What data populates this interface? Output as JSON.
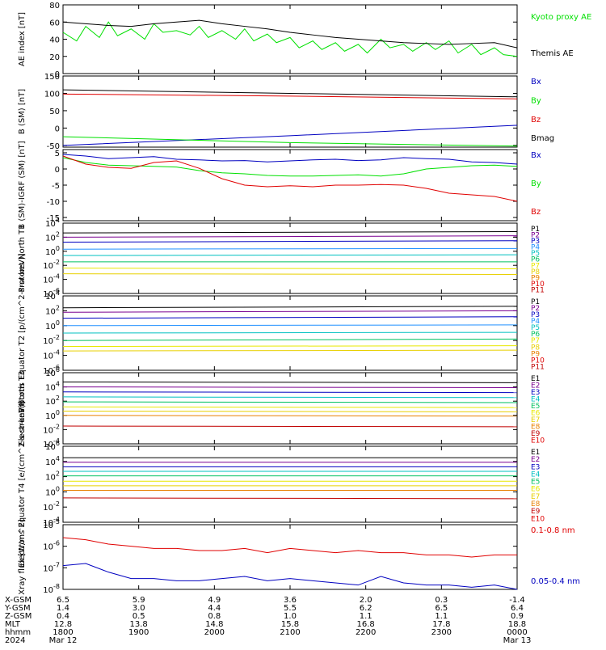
{
  "chart_data": [
    {
      "type": "line",
      "ylabel": "AE index [nT]",
      "ylim": [
        0,
        80
      ],
      "yticks": [
        "0",
        "20",
        "40",
        "60",
        "80"
      ],
      "series": [
        {
          "name": "Kyoto proxy AE",
          "color": "#00e000",
          "x": [
            0,
            0.03,
            0.05,
            0.08,
            0.1,
            0.12,
            0.15,
            0.18,
            0.2,
            0.22,
            0.25,
            0.28,
            0.3,
            0.32,
            0.35,
            0.38,
            0.4,
            0.42,
            0.45,
            0.47,
            0.5,
            0.52,
            0.55,
            0.57,
            0.6,
            0.62,
            0.65,
            0.67,
            0.7,
            0.72,
            0.75,
            0.77,
            0.8,
            0.82,
            0.85,
            0.87,
            0.9,
            0.92,
            0.95,
            0.97,
            1.0
          ],
          "y": [
            48,
            38,
            55,
            42,
            60,
            44,
            52,
            40,
            58,
            48,
            50,
            45,
            55,
            42,
            50,
            40,
            52,
            38,
            46,
            36,
            42,
            30,
            38,
            28,
            36,
            26,
            34,
            24,
            40,
            30,
            34,
            26,
            36,
            28,
            38,
            24,
            34,
            22,
            30,
            22,
            20
          ]
        },
        {
          "name": "Themis AE",
          "color": "#000000",
          "x": [
            0,
            0.05,
            0.1,
            0.15,
            0.2,
            0.25,
            0.3,
            0.35,
            0.4,
            0.45,
            0.5,
            0.55,
            0.6,
            0.65,
            0.7,
            0.75,
            0.8,
            0.85,
            0.9,
            0.95,
            1.0
          ],
          "y": [
            60,
            58,
            56,
            55,
            58,
            60,
            62,
            58,
            55,
            52,
            48,
            45,
            42,
            40,
            38,
            36,
            35,
            34,
            35,
            36,
            30
          ]
        }
      ],
      "legend": [
        "Kyoto proxy AE",
        "Themis AE"
      ]
    },
    {
      "type": "line",
      "ylabel": "B (SM) [nT]",
      "ylim": [
        -55,
        150
      ],
      "yticks": [
        "-50",
        "0",
        "50",
        "100",
        "150"
      ],
      "series": [
        {
          "name": "Bx",
          "color": "#0000c0",
          "x": [
            0,
            0.5,
            1.0
          ],
          "y": [
            -50,
            -22,
            8
          ]
        },
        {
          "name": "By",
          "color": "#00e000",
          "x": [
            0,
            0.5,
            1.0
          ],
          "y": [
            -25,
            -42,
            -52
          ]
        },
        {
          "name": "Bz",
          "color": "#e00000",
          "x": [
            0,
            0.5,
            1.0
          ],
          "y": [
            98,
            92,
            84
          ]
        },
        {
          "name": "Bmag",
          "color": "#000000",
          "x": [
            0,
            0.5,
            1.0
          ],
          "y": [
            110,
            100,
            90
          ]
        }
      ]
    },
    {
      "type": "line",
      "ylabel": "B (SM)-IGRF (SM) [nT]",
      "ylim": [
        -16,
        6
      ],
      "yticks": [
        "5",
        "0",
        "-5",
        "-10",
        "-15"
      ],
      "series": [
        {
          "name": "Bx",
          "color": "#0000c0",
          "x": [
            0,
            0.05,
            0.1,
            0.15,
            0.2,
            0.25,
            0.3,
            0.35,
            0.4,
            0.45,
            0.5,
            0.55,
            0.6,
            0.65,
            0.7,
            0.75,
            0.8,
            0.85,
            0.9,
            0.95,
            1.0
          ],
          "y": [
            4.5,
            4,
            3.2,
            3.5,
            3.8,
            3,
            2.8,
            2.5,
            2.6,
            2.2,
            2.5,
            2.8,
            3,
            2.6,
            2.8,
            3.5,
            3.2,
            3,
            2.2,
            2,
            1.5
          ]
        },
        {
          "name": "By",
          "color": "#00e000",
          "x": [
            0,
            0.05,
            0.1,
            0.15,
            0.2,
            0.25,
            0.3,
            0.35,
            0.4,
            0.45,
            0.5,
            0.55,
            0.6,
            0.65,
            0.7,
            0.75,
            0.8,
            0.85,
            0.9,
            0.95,
            1.0
          ],
          "y": [
            3.5,
            2,
            1.2,
            1,
            0.8,
            0.6,
            -0.5,
            -1.2,
            -1.5,
            -2,
            -2.2,
            -2.2,
            -2,
            -1.8,
            -2.2,
            -1.5,
            0,
            0.5,
            1,
            1.2,
            0.8
          ]
        },
        {
          "name": "Bz",
          "color": "#e00000",
          "x": [
            0,
            0.05,
            0.1,
            0.15,
            0.2,
            0.25,
            0.3,
            0.35,
            0.4,
            0.45,
            0.5,
            0.55,
            0.6,
            0.65,
            0.7,
            0.75,
            0.8,
            0.85,
            0.9,
            0.95,
            1.0
          ],
          "y": [
            4,
            1.5,
            0.5,
            0.2,
            2,
            2.5,
            0.2,
            -3,
            -5,
            -5.5,
            -5.2,
            -5.5,
            -5,
            -5,
            -4.8,
            -5,
            -6,
            -7.5,
            -8,
            -8.5,
            -10
          ]
        }
      ]
    },
    {
      "type": "line",
      "ylabel": "Protons North T1",
      "log": true,
      "ylim": [
        -6,
        4
      ],
      "yticks": [
        "10^4",
        "10^2",
        "10^0",
        "10^-2",
        "10^-4",
        "10^-6"
      ],
      "series": [
        {
          "name": "P1",
          "color": "#000000",
          "y": [
            2.6,
            2.8
          ]
        },
        {
          "name": "P2",
          "color": "#7a0090",
          "y": [
            2.0,
            2.2
          ]
        },
        {
          "name": "P3",
          "color": "#0000c0",
          "y": [
            1.3,
            1.5
          ]
        },
        {
          "name": "P4",
          "color": "#2090ff",
          "y": [
            0.3,
            0.4
          ]
        },
        {
          "name": "P5",
          "color": "#00c0c0",
          "y": [
            -0.6,
            -0.5
          ]
        },
        {
          "name": "P6",
          "color": "#00c060",
          "y": [
            -1.5,
            -1.5
          ]
        },
        {
          "name": "P7",
          "color": "#e8e800",
          "y": [
            -2.4,
            -2.5
          ]
        },
        {
          "name": "P8",
          "color": "#e8d000",
          "y": [
            -3.2,
            -3.3
          ]
        },
        {
          "name": "P9",
          "color": "#e88000",
          "y": []
        },
        {
          "name": "P10",
          "color": "#e00000",
          "y": []
        },
        {
          "name": "P11",
          "color": "#c00000",
          "y": []
        }
      ]
    },
    {
      "type": "line",
      "ylabel": "Protons Equator T2 [p/(cm^2-s-sr-keV)]",
      "log": true,
      "ylim": [
        -6,
        4
      ],
      "yticks": [
        "10^4",
        "10^2",
        "10^0",
        "10^-2",
        "10^-4",
        "10^-6"
      ],
      "series": [
        {
          "name": "P1",
          "color": "#000000",
          "y": [
            2.4,
            2.6
          ]
        },
        {
          "name": "P2",
          "color": "#7a0090",
          "y": [
            1.8,
            2.0
          ]
        },
        {
          "name": "P3",
          "color": "#0000c0",
          "y": [
            1.0,
            1.2
          ]
        },
        {
          "name": "P4",
          "color": "#2090ff",
          "y": [
            0.0,
            0.1
          ]
        },
        {
          "name": "P5",
          "color": "#00c0c0",
          "y": [
            -1.0,
            -0.9
          ]
        },
        {
          "name": "P6",
          "color": "#00c060",
          "y": [
            -2.0,
            -1.8
          ]
        },
        {
          "name": "P7",
          "color": "#e8e800",
          "y": [
            -2.8,
            -2.7
          ]
        },
        {
          "name": "P8",
          "color": "#e8d000",
          "y": [
            -3.4,
            -3.3
          ]
        },
        {
          "name": "P9",
          "color": "#e88000",
          "y": []
        },
        {
          "name": "P10",
          "color": "#e00000",
          "y": []
        },
        {
          "name": "P11",
          "color": "#c00000",
          "y": []
        }
      ]
    },
    {
      "type": "line",
      "ylabel": "Electrons North T3",
      "log": true,
      "ylim": [
        -4,
        6
      ],
      "yticks": [
        "10^6",
        "10^4",
        "10^2",
        "10^0",
        "10^-2",
        "10^-4"
      ],
      "series": [
        {
          "name": "E1",
          "color": "#000000",
          "y": [
            4.7,
            4.6
          ]
        },
        {
          "name": "E2",
          "color": "#7a0090",
          "y": [
            4.0,
            3.9
          ]
        },
        {
          "name": "E3",
          "color": "#0000c0",
          "y": [
            3.3,
            3.2
          ]
        },
        {
          "name": "E4",
          "color": "#00c0c0",
          "y": [
            2.6,
            2.5
          ]
        },
        {
          "name": "E5",
          "color": "#00c060",
          "y": [
            1.9,
            1.8
          ]
        },
        {
          "name": "E6",
          "color": "#e8e800",
          "y": [
            1.2,
            1.1
          ]
        },
        {
          "name": "E7",
          "color": "#e8d000",
          "y": [
            0.6,
            0.5
          ]
        },
        {
          "name": "E8",
          "color": "#e88000",
          "y": [
            0.0,
            -0.1
          ]
        },
        {
          "name": "E9",
          "color": "#c00000",
          "y": [
            -1.5,
            -1.6
          ]
        },
        {
          "name": "E10",
          "color": "#e00000",
          "y": []
        }
      ]
    },
    {
      "type": "line",
      "ylabel": "Electrons Equator T4 [e/(cm^2-s-sr-keV)]",
      "log": true,
      "ylim": [
        -4,
        6
      ],
      "yticks": [
        "10^6",
        "10^4",
        "10^2",
        "10^0",
        "10^-2",
        "10^-4"
      ],
      "series": [
        {
          "name": "E1",
          "color": "#000000",
          "y": [
            4.5,
            4.5
          ]
        },
        {
          "name": "E2",
          "color": "#7a0090",
          "y": [
            3.9,
            3.9
          ]
        },
        {
          "name": "E3",
          "color": "#0000c0",
          "y": [
            3.3,
            3.3
          ]
        },
        {
          "name": "E4",
          "color": "#00c0c0",
          "y": [
            2.7,
            2.7
          ]
        },
        {
          "name": "E5",
          "color": "#00c060",
          "y": [
            2.1,
            2.1
          ]
        },
        {
          "name": "E6",
          "color": "#e8e800",
          "y": [
            1.4,
            1.4
          ]
        },
        {
          "name": "E7",
          "color": "#e8d000",
          "y": [
            0.8,
            0.8
          ]
        },
        {
          "name": "E8",
          "color": "#e88000",
          "y": [
            0.2,
            0.2
          ]
        },
        {
          "name": "E9",
          "color": "#c00000",
          "y": [
            -0.8,
            -0.9
          ]
        },
        {
          "name": "E10",
          "color": "#e00000",
          "y": []
        }
      ]
    },
    {
      "type": "line",
      "ylabel": "Xray flux [W/m^2]",
      "log": true,
      "ylim": [
        -8,
        -5
      ],
      "yticks": [
        "10^-5",
        "10^-6",
        "10^-7",
        "10^-8"
      ],
      "series": [
        {
          "name": "0.1-0.8 nm",
          "color": "#e00000",
          "x": [
            0,
            0.05,
            0.1,
            0.15,
            0.2,
            0.25,
            0.3,
            0.35,
            0.4,
            0.45,
            0.5,
            0.55,
            0.6,
            0.65,
            0.7,
            0.75,
            0.8,
            0.85,
            0.9,
            0.95,
            1.0
          ],
          "y": [
            -5.6,
            -5.7,
            -5.9,
            -6.0,
            -6.1,
            -6.1,
            -6.2,
            -6.2,
            -6.1,
            -6.3,
            -6.1,
            -6.2,
            -6.3,
            -6.2,
            -6.3,
            -6.3,
            -6.4,
            -6.4,
            -6.5,
            -6.4,
            -6.4
          ]
        },
        {
          "name": "0.05-0.4 nm",
          "color": "#0000c0",
          "x": [
            0,
            0.05,
            0.1,
            0.15,
            0.2,
            0.25,
            0.3,
            0.35,
            0.4,
            0.45,
            0.5,
            0.55,
            0.6,
            0.65,
            0.7,
            0.75,
            0.8,
            0.85,
            0.9,
            0.95,
            1.0
          ],
          "y": [
            -6.9,
            -6.8,
            -7.2,
            -7.5,
            -7.5,
            -7.6,
            -7.6,
            -7.5,
            -7.4,
            -7.6,
            -7.5,
            -7.6,
            -7.7,
            -7.8,
            -7.4,
            -7.7,
            -7.8,
            -7.8,
            -7.9,
            -7.8,
            -8.0
          ]
        }
      ]
    }
  ],
  "xaxis": {
    "rows": [
      {
        "label": "X-GSM",
        "values": [
          "6.5",
          "5.9",
          "4.9",
          "3.6",
          "2.0",
          "0.3",
          "-1.4"
        ]
      },
      {
        "label": "Y-GSM",
        "values": [
          "1.4",
          "3.0",
          "4.4",
          "5.5",
          "6.2",
          "6.5",
          "6.4"
        ]
      },
      {
        "label": "Z-GSM",
        "values": [
          "0.4",
          "0.5",
          "0.8",
          "1.0",
          "1.1",
          "1.1",
          "0.9"
        ]
      },
      {
        "label": "MLT",
        "values": [
          "12.8",
          "13.8",
          "14.8",
          "15.8",
          "16.8",
          "17.8",
          "18.8"
        ]
      },
      {
        "label": "hhmm",
        "values": [
          "1800",
          "1900",
          "2000",
          "2100",
          "2200",
          "2300",
          "0000"
        ]
      },
      {
        "label": "2024",
        "values": [
          "Mar 12",
          "",
          "",
          "",
          "",
          "",
          "Mar 13"
        ]
      }
    ]
  }
}
